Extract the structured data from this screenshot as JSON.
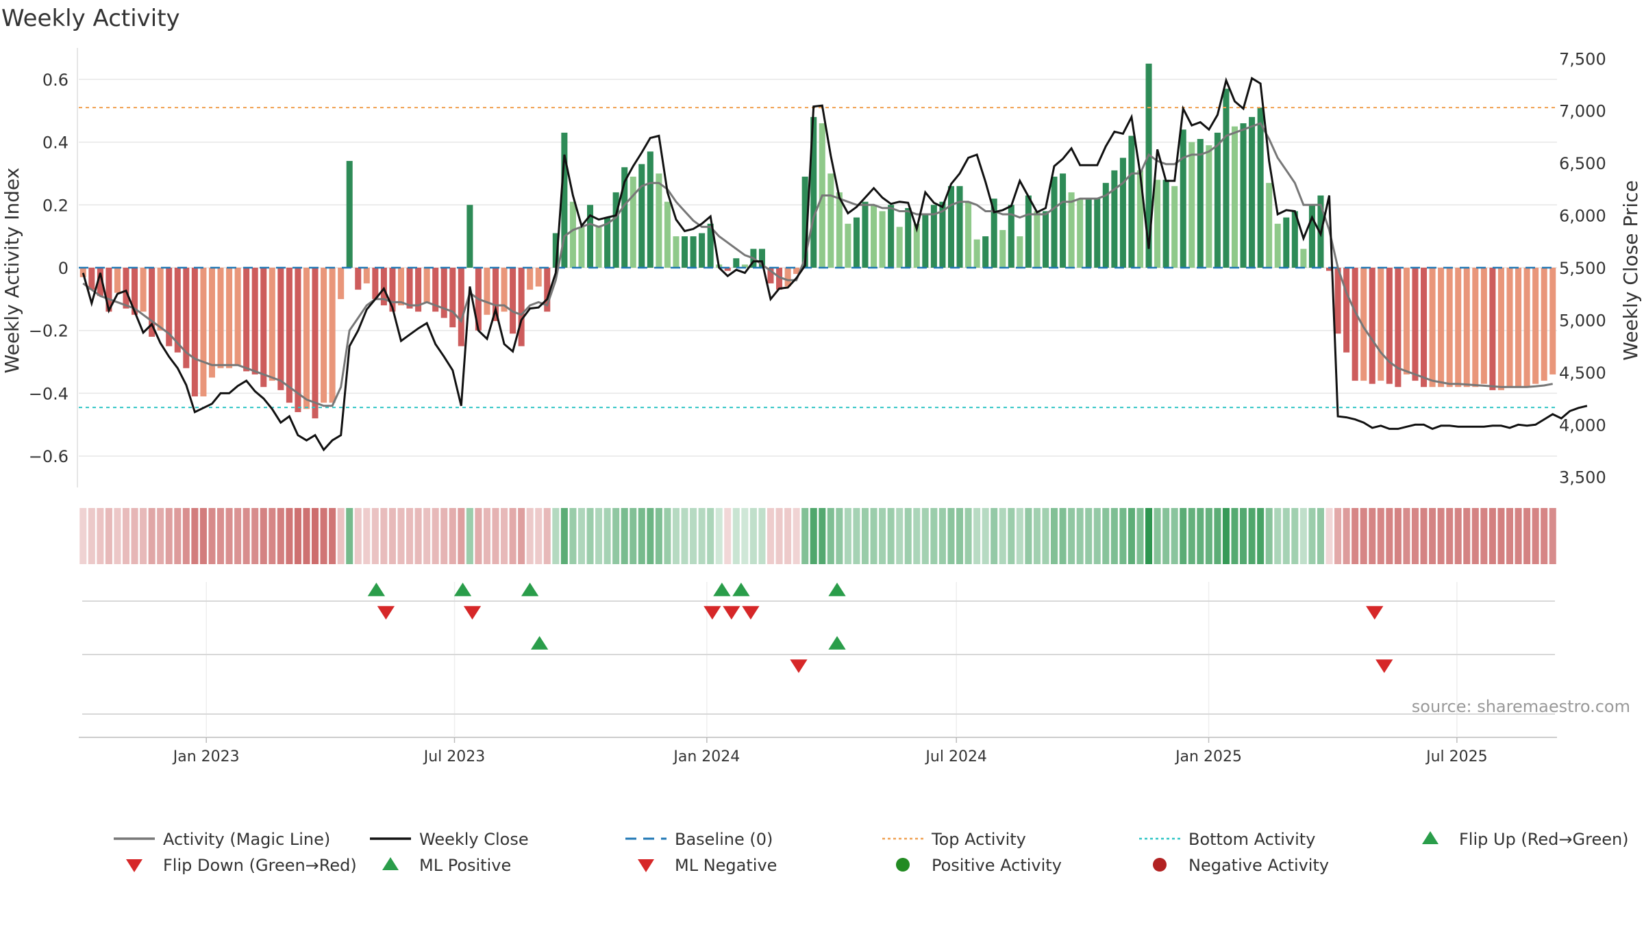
{
  "chart_data": {
    "type": "bar",
    "title": "Weekly Activity",
    "xlabel": "",
    "ylabel": "Weekly Activity Index",
    "y2label": "Weekly Close Price",
    "ylim": [
      -0.7,
      0.7
    ],
    "y2lim": [
      3400,
      7600
    ],
    "yticks": [
      -0.6,
      -0.4,
      -0.2,
      0,
      0.2,
      0.4,
      0.6
    ],
    "ytick_labels": [
      "−0.6",
      "−0.4",
      "−0.2",
      "0",
      "0.2",
      "0.4",
      "0.6"
    ],
    "y2ticks": [
      3500,
      4000,
      4500,
      5000,
      5500,
      6000,
      6500,
      7000,
      7500
    ],
    "y2tick_labels": [
      "3,500",
      "4,000",
      "4,500",
      "5,000",
      "5,500",
      "6,000",
      "6,500",
      "7,000",
      "7,500"
    ],
    "x_start": "2022-09-30",
    "x_end": "2025-09-12",
    "xticks": [
      "2023-01-01",
      "2023-07-01",
      "2024-01-01",
      "2024-07-01",
      "2025-01-01",
      "2025-07-01"
    ],
    "xtick_labels": [
      "Jan 2023",
      "Jul 2023",
      "Jan 2024",
      "Jul 2024",
      "Jan 2025",
      "Jul 2025"
    ],
    "top_activity_level": 0.51,
    "bottom_activity_level": -0.445,
    "baseline": 0,
    "activity_index": [
      -0.03,
      -0.07,
      -0.09,
      -0.14,
      -0.08,
      -0.13,
      -0.15,
      -0.14,
      -0.22,
      -0.2,
      -0.25,
      -0.27,
      -0.32,
      -0.41,
      -0.41,
      -0.35,
      -0.32,
      -0.32,
      -0.31,
      -0.33,
      -0.34,
      -0.38,
      -0.36,
      -0.39,
      -0.43,
      -0.46,
      -0.45,
      -0.48,
      -0.43,
      -0.43,
      -0.1,
      0.34,
      -0.07,
      -0.05,
      -0.1,
      -0.12,
      -0.14,
      -0.12,
      -0.13,
      -0.14,
      -0.11,
      -0.14,
      -0.16,
      -0.19,
      -0.25,
      0.2,
      -0.2,
      -0.15,
      -0.17,
      -0.14,
      -0.21,
      -0.25,
      -0.07,
      -0.06,
      -0.14,
      0.11,
      0.43,
      0.21,
      0.13,
      0.2,
      0.13,
      0.16,
      0.24,
      0.32,
      0.29,
      0.33,
      0.37,
      0.3,
      0.21,
      0.1,
      0.1,
      0.1,
      0.11,
      0.14,
      0.01,
      -0.01,
      0.03,
      0.01,
      0.06,
      0.06,
      -0.05,
      -0.07,
      -0.06,
      -0.02,
      0.29,
      0.48,
      0.46,
      0.3,
      0.24,
      0.14,
      0.16,
      0.21,
      0.2,
      0.18,
      0.2,
      0.13,
      0.19,
      0.14,
      0.17,
      0.2,
      0.21,
      0.26,
      0.26,
      0.21,
      0.09,
      0.1,
      0.22,
      0.12,
      0.2,
      0.1,
      0.23,
      0.18,
      0.18,
      0.29,
      0.3,
      0.24,
      0.22,
      0.22,
      0.22,
      0.27,
      0.31,
      0.35,
      0.42,
      0.31,
      0.65,
      0.28,
      0.28,
      0.26,
      0.44,
      0.4,
      0.41,
      0.39,
      0.43,
      0.57,
      0.45,
      0.46,
      0.48,
      0.51,
      0.27,
      0.14,
      0.16,
      0.18,
      0.06,
      0.2,
      0.23,
      -0.01,
      -0.21,
      -0.27,
      -0.36,
      -0.36,
      -0.37,
      -0.36,
      -0.37,
      -0.38,
      -0.34,
      -0.36,
      -0.38,
      -0.38,
      -0.38,
      -0.38,
      -0.38,
      -0.38,
      -0.38,
      -0.37,
      -0.39,
      -0.39,
      -0.38,
      -0.38,
      -0.38,
      -0.37,
      -0.36,
      -0.34
    ],
    "weekly_close": [
      5450,
      5160,
      5450,
      5090,
      5250,
      5280,
      5080,
      4880,
      4960,
      4780,
      4650,
      4540,
      4380,
      4120,
      4160,
      4200,
      4300,
      4300,
      4370,
      4420,
      4320,
      4250,
      4150,
      4020,
      4080,
      3900,
      3850,
      3900,
      3760,
      3850,
      3900,
      4750,
      4900,
      5100,
      5200,
      5300,
      5120,
      4800,
      4860,
      4920,
      4970,
      4770,
      4650,
      4520,
      4180,
      5320,
      4900,
      4820,
      5100,
      4770,
      4700,
      5000,
      5110,
      5120,
      5200,
      5450,
      6580,
      6190,
      5900,
      6000,
      5960,
      5980,
      6000,
      6320,
      6470,
      6600,
      6740,
      6760,
      6220,
      5960,
      5850,
      5870,
      5920,
      5990,
      5500,
      5420,
      5480,
      5450,
      5560,
      5560,
      5200,
      5300,
      5310,
      5400,
      5520,
      7040,
      7050,
      6570,
      6170,
      6020,
      6080,
      6170,
      6260,
      6170,
      6110,
      6130,
      6120,
      5870,
      6220,
      6120,
      6080,
      6300,
      6400,
      6550,
      6580,
      6320,
      6030,
      6050,
      6090,
      6330,
      6180,
      6030,
      6070,
      6470,
      6540,
      6640,
      6480,
      6480,
      6480,
      6660,
      6800,
      6780,
      6940,
      6400,
      5680,
      6630,
      6330,
      6330,
      7020,
      6860,
      6890,
      6820,
      6960,
      7290,
      7090,
      7020,
      7310,
      7260,
      6520,
      6010,
      6050,
      6040,
      5780,
      5980,
      5820,
      6190,
      4080,
      4070,
      4050,
      4020,
      3970,
      3990,
      3960,
      3960,
      3980,
      4000,
      4000,
      3960,
      3990,
      3990,
      3980,
      3980,
      3980,
      3980,
      3990,
      3990,
      3970,
      4000,
      3990,
      4000,
      4050,
      4100,
      4060,
      4130,
      4160,
      4180
    ],
    "activity_magic_line": [
      -0.05,
      -0.07,
      -0.09,
      -0.1,
      -0.11,
      -0.12,
      -0.13,
      -0.15,
      -0.17,
      -0.19,
      -0.21,
      -0.24,
      -0.27,
      -0.29,
      -0.3,
      -0.31,
      -0.31,
      -0.31,
      -0.31,
      -0.32,
      -0.33,
      -0.34,
      -0.35,
      -0.36,
      -0.38,
      -0.4,
      -0.42,
      -0.43,
      -0.44,
      -0.44,
      -0.38,
      -0.2,
      -0.16,
      -0.12,
      -0.1,
      -0.1,
      -0.11,
      -0.11,
      -0.12,
      -0.12,
      -0.11,
      -0.12,
      -0.13,
      -0.14,
      -0.17,
      -0.08,
      -0.1,
      -0.11,
      -0.12,
      -0.12,
      -0.14,
      -0.15,
      -0.12,
      -0.11,
      -0.12,
      -0.04,
      0.1,
      0.12,
      0.13,
      0.14,
      0.13,
      0.14,
      0.16,
      0.2,
      0.23,
      0.26,
      0.27,
      0.27,
      0.25,
      0.21,
      0.18,
      0.15,
      0.13,
      0.13,
      0.1,
      0.08,
      0.06,
      0.04,
      0.03,
      0.01,
      -0.01,
      -0.03,
      -0.04,
      -0.04,
      0.03,
      0.16,
      0.23,
      0.23,
      0.22,
      0.21,
      0.2,
      0.2,
      0.2,
      0.19,
      0.19,
      0.18,
      0.18,
      0.17,
      0.17,
      0.17,
      0.18,
      0.2,
      0.21,
      0.21,
      0.2,
      0.18,
      0.18,
      0.17,
      0.17,
      0.16,
      0.17,
      0.17,
      0.17,
      0.19,
      0.21,
      0.21,
      0.22,
      0.22,
      0.22,
      0.23,
      0.25,
      0.27,
      0.3,
      0.3,
      0.36,
      0.34,
      0.33,
      0.33,
      0.35,
      0.36,
      0.36,
      0.37,
      0.39,
      0.42,
      0.43,
      0.44,
      0.45,
      0.46,
      0.41,
      0.35,
      0.31,
      0.27,
      0.2,
      0.2,
      0.2,
      0.12,
      0,
      -0.08,
      -0.14,
      -0.19,
      -0.23,
      -0.27,
      -0.3,
      -0.32,
      -0.33,
      -0.34,
      -0.35,
      -0.36,
      -0.365,
      -0.37,
      -0.37,
      -0.372,
      -0.374,
      -0.376,
      -0.378,
      -0.38,
      -0.38,
      -0.38,
      -0.38,
      -0.378,
      -0.375,
      -0.37
    ],
    "markers": {
      "flip_up": [
        "2023-05-05",
        "2023-07-07",
        "2023-08-25",
        "2024-01-12",
        "2024-01-26",
        "2024-04-05"
      ],
      "flip_down": [
        "2023-05-12",
        "2023-07-14",
        "2024-01-05",
        "2024-01-19",
        "2024-02-02",
        "2025-05-02"
      ],
      "ml_positive": [
        "2023-09-01",
        "2024-04-05"
      ],
      "ml_negative": [
        "2024-03-08",
        "2025-05-09"
      ]
    },
    "source": "source: sharemaestro.com",
    "legend_position": "bottom",
    "legend": [
      {
        "label": "Activity (Magic Line)",
        "kind": "line",
        "color": "#777777"
      },
      {
        "label": "Weekly Close",
        "kind": "line",
        "color": "#111111"
      },
      {
        "label": "Baseline (0)",
        "kind": "dash",
        "color": "#1f77b4"
      },
      {
        "label": "Top Activity",
        "kind": "dot",
        "color": "#f0a050"
      },
      {
        "label": "Bottom Activity",
        "kind": "dot",
        "color": "#2ec4c4"
      },
      {
        "label": "Flip Up (Red→Green)",
        "kind": "tri-up",
        "color": "#2a9d4a"
      },
      {
        "label": "Flip Down (Green→Red)",
        "kind": "tri-down",
        "color": "#d62728"
      },
      {
        "label": "ML Positive",
        "kind": "tri-up",
        "color": "#2a9d4a"
      },
      {
        "label": "ML Negative",
        "kind": "tri-down",
        "color": "#d62728"
      },
      {
        "label": "Positive Activity",
        "kind": "circle",
        "color": "#228b22"
      },
      {
        "label": "Negative Activity",
        "kind": "circle",
        "color": "#b22222"
      }
    ],
    "colors": {
      "pos_dark": "#2e8b57",
      "pos_light": "#8fc98a",
      "neg_dark": "#cd5c5c",
      "neg_light": "#e9967a",
      "grid": "#e6e6e6",
      "axis_text": "#333333"
    }
  }
}
